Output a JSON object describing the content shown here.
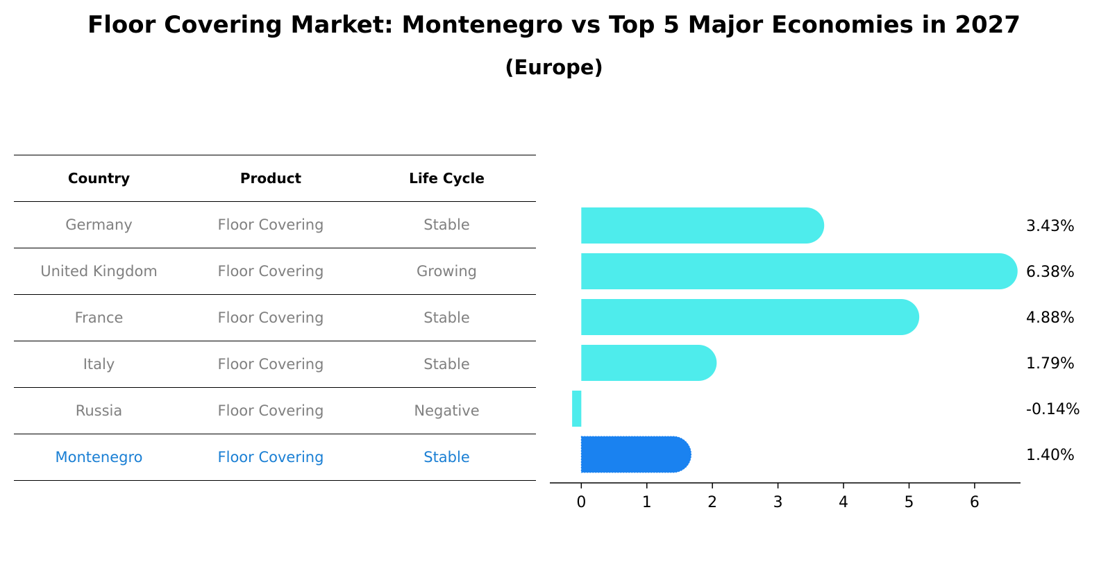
{
  "title": "Floor Covering Market: Montenegro vs Top 5 Major Economies in 2027",
  "subtitle": "(Europe)",
  "table": {
    "headers": [
      "Country",
      "Product",
      "Life Cycle"
    ],
    "rows": [
      {
        "country": "Germany",
        "product": "Floor Covering",
        "life_cycle": "Stable"
      },
      {
        "country": "United Kingdom",
        "product": "Floor Covering",
        "life_cycle": "Growing"
      },
      {
        "country": "France",
        "product": "Floor Covering",
        "life_cycle": "Stable"
      },
      {
        "country": "Italy",
        "product": "Floor Covering",
        "life_cycle": "Stable"
      },
      {
        "country": "Russia",
        "product": "Floor Covering",
        "life_cycle": "Negative"
      },
      {
        "country": "Montenegro",
        "product": "Floor Covering",
        "life_cycle": "Stable"
      }
    ],
    "highlight_row": 5
  },
  "colors": {
    "bar": "#4eecec",
    "highlight_bar": "#1a82f0",
    "highlight_text": "#1a7fd4",
    "muted_text": "#808080"
  },
  "chart_data": {
    "type": "bar",
    "orientation": "horizontal",
    "categories": [
      "Germany",
      "United Kingdom",
      "France",
      "Italy",
      "Russia",
      "Montenegro"
    ],
    "values": [
      3.43,
      6.38,
      4.88,
      1.79,
      -0.14,
      1.4
    ],
    "value_labels": [
      "3.43%",
      "6.38%",
      "4.88%",
      "1.79%",
      "-0.14%",
      "1.40%"
    ],
    "highlight_index": 5,
    "xlim": [
      -0.48,
      6.7
    ],
    "xticks": [
      0,
      1,
      2,
      3,
      4,
      5,
      6
    ],
    "xlabel": "",
    "ylabel": "",
    "grid": false
  }
}
